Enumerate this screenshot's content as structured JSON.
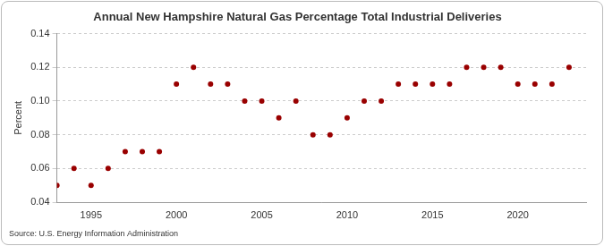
{
  "chart_data": {
    "type": "scatter",
    "title": "Annual New Hampshire Natural Gas Percentage Total Industrial Deliveries",
    "y_label": "Percent",
    "source": "Source: U.S. Energy Information Administration",
    "x": [
      1993,
      1994,
      1995,
      1996,
      1997,
      1998,
      1999,
      2000,
      2001,
      2002,
      2003,
      2004,
      2005,
      2006,
      2007,
      2008,
      2009,
      2010,
      2011,
      2012,
      2013,
      2014,
      2015,
      2016,
      2017,
      2018,
      2019,
      2020,
      2021,
      2022,
      2023
    ],
    "values": [
      0.05,
      0.06,
      0.05,
      0.06,
      0.07,
      0.07,
      0.07,
      0.11,
      0.12,
      0.11,
      0.11,
      0.1,
      0.1,
      0.09,
      0.1,
      0.08,
      0.08,
      0.09,
      0.1,
      0.1,
      0.11,
      0.11,
      0.11,
      0.11,
      0.12,
      0.12,
      0.12,
      0.11,
      0.11,
      0.11,
      0.12
    ],
    "color": "#990000",
    "marker": "circle",
    "xlim": [
      1993,
      2024
    ],
    "xticks": [
      1995,
      2000,
      2005,
      2010,
      2015,
      2020
    ],
    "ylim": [
      0.04,
      0.14
    ],
    "yticks": [
      0.04,
      0.06,
      0.08,
      {
        "value": 0.1,
        "label": "0.10"
      },
      0.12,
      0.14
    ],
    "grid": true
  }
}
